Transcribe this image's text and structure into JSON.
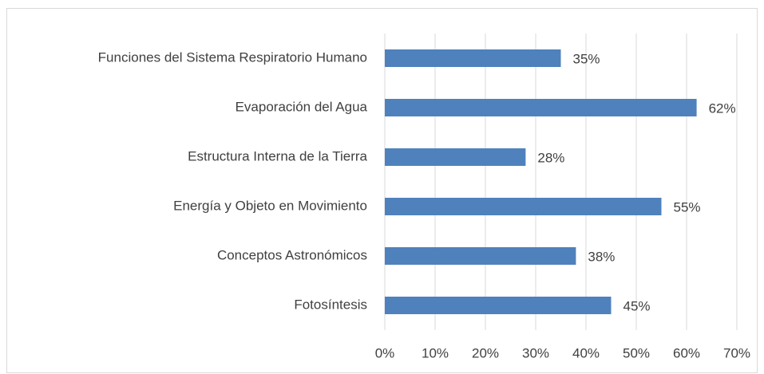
{
  "chart_data": {
    "type": "hbar",
    "categories": [
      "Funciones del Sistema Respiratorio Humano",
      "Evaporación del Agua",
      "Estructura Interna de la Tierra",
      "Energía y Objeto en Movimiento",
      "Conceptos Astronómicos",
      "Fotosíntesis"
    ],
    "values": [
      35,
      62,
      28,
      55,
      38,
      45
    ],
    "value_labels": [
      "35%",
      "62%",
      "28%",
      "55%",
      "38%",
      "45%"
    ],
    "color": "#4f81bd",
    "xlim": [
      0,
      70
    ],
    "xticks": [
      {
        "value": 0,
        "label": "0%"
      },
      {
        "value": 10,
        "label": "10%"
      },
      {
        "value": 20,
        "label": "20%"
      },
      {
        "value": 30,
        "label": "30%"
      },
      {
        "value": 40,
        "label": "40%"
      },
      {
        "value": 50,
        "label": "50%"
      },
      {
        "value": 60,
        "label": "60%"
      },
      {
        "value": 70,
        "label": "70%"
      }
    ],
    "grid": true
  }
}
